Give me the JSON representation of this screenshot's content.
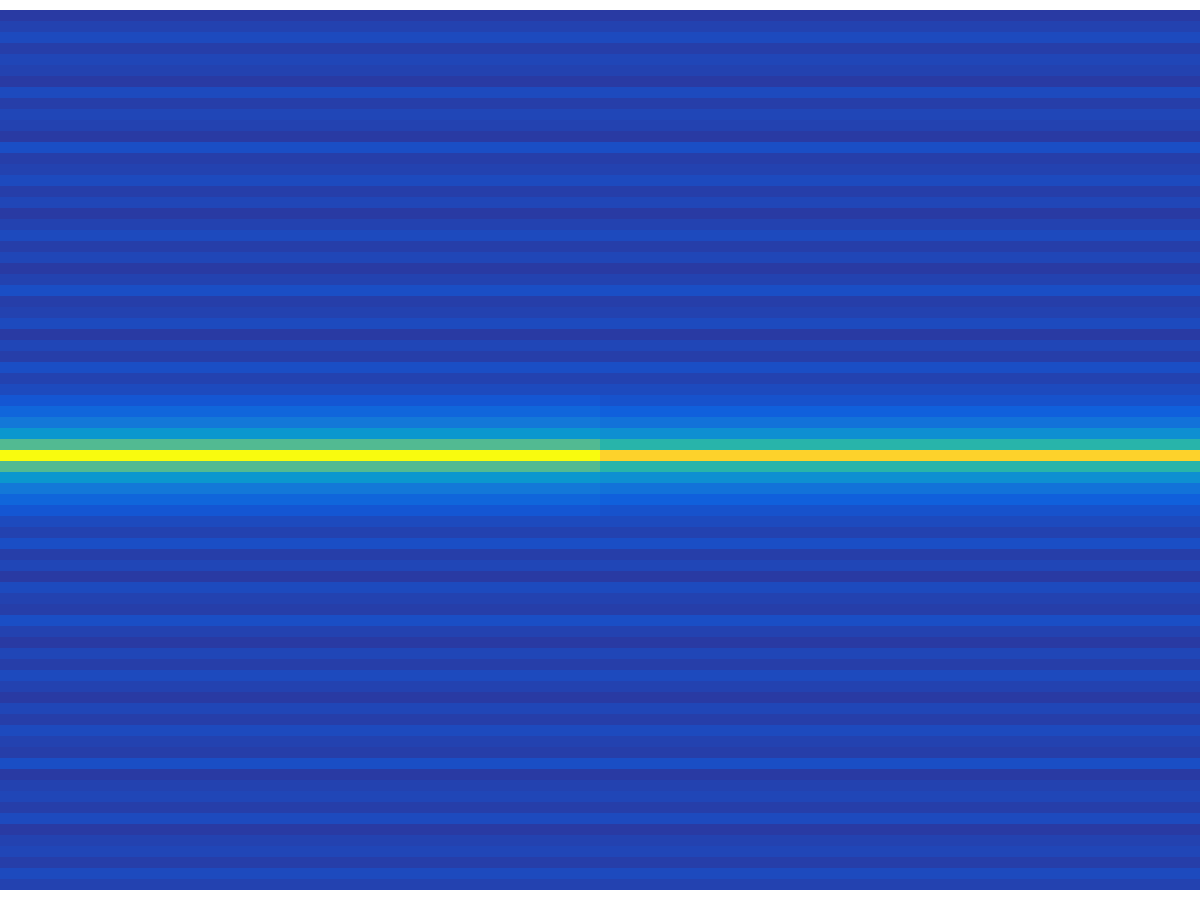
{
  "chart_data": {
    "type": "heatmap",
    "tick_labels": false,
    "zlim": [
      0,
      1
    ],
    "cells": [
      [
        0.04,
        0.04
      ],
      [
        0.06,
        0.06
      ],
      [
        0.08,
        0.08
      ],
      [
        0.05,
        0.05
      ],
      [
        0.07,
        0.07
      ],
      [
        0.06,
        0.06
      ],
      [
        0.04,
        0.04
      ],
      [
        0.08,
        0.08
      ],
      [
        0.05,
        0.05
      ],
      [
        0.07,
        0.07
      ],
      [
        0.06,
        0.06
      ],
      [
        0.04,
        0.04
      ],
      [
        0.09,
        0.09
      ],
      [
        0.05,
        0.05
      ],
      [
        0.06,
        0.06
      ],
      [
        0.08,
        0.08
      ],
      [
        0.05,
        0.05
      ],
      [
        0.07,
        0.07
      ],
      [
        0.04,
        0.04
      ],
      [
        0.06,
        0.06
      ],
      [
        0.08,
        0.08
      ],
      [
        0.05,
        0.05
      ],
      [
        0.07,
        0.07
      ],
      [
        0.04,
        0.04
      ],
      [
        0.06,
        0.06
      ],
      [
        0.09,
        0.09
      ],
      [
        0.05,
        0.05
      ],
      [
        0.06,
        0.06
      ],
      [
        0.08,
        0.08
      ],
      [
        0.04,
        0.04
      ],
      [
        0.07,
        0.07
      ],
      [
        0.05,
        0.05
      ],
      [
        0.09,
        0.09
      ],
      [
        0.06,
        0.06
      ],
      [
        0.08,
        0.08
      ],
      [
        0.11,
        0.1
      ],
      [
        0.16,
        0.14
      ],
      [
        0.22,
        0.2
      ],
      [
        0.33,
        0.3
      ],
      [
        0.55,
        0.48
      ],
      [
        1.0,
        0.9
      ],
      [
        0.55,
        0.48
      ],
      [
        0.33,
        0.3
      ],
      [
        0.22,
        0.2
      ],
      [
        0.16,
        0.14
      ],
      [
        0.11,
        0.1
      ],
      [
        0.08,
        0.08
      ],
      [
        0.06,
        0.06
      ],
      [
        0.09,
        0.09
      ],
      [
        0.05,
        0.05
      ],
      [
        0.07,
        0.07
      ],
      [
        0.04,
        0.04
      ],
      [
        0.08,
        0.08
      ],
      [
        0.06,
        0.06
      ],
      [
        0.05,
        0.05
      ],
      [
        0.09,
        0.09
      ],
      [
        0.06,
        0.06
      ],
      [
        0.04,
        0.04
      ],
      [
        0.07,
        0.07
      ],
      [
        0.05,
        0.05
      ],
      [
        0.08,
        0.08
      ],
      [
        0.06,
        0.06
      ],
      [
        0.04,
        0.04
      ],
      [
        0.07,
        0.07
      ],
      [
        0.05,
        0.05
      ],
      [
        0.08,
        0.08
      ],
      [
        0.06,
        0.06
      ],
      [
        0.05,
        0.05
      ],
      [
        0.09,
        0.09
      ],
      [
        0.04,
        0.04
      ],
      [
        0.06,
        0.06
      ],
      [
        0.07,
        0.07
      ],
      [
        0.05,
        0.05
      ],
      [
        0.08,
        0.08
      ],
      [
        0.04,
        0.04
      ],
      [
        0.06,
        0.06
      ],
      [
        0.07,
        0.07
      ],
      [
        0.05,
        0.05
      ],
      [
        0.08,
        0.08
      ],
      [
        0.06,
        0.06
      ]
    ]
  }
}
